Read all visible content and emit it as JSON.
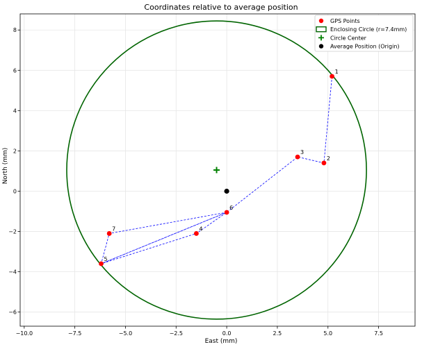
{
  "chart_data": {
    "type": "scatter",
    "title": "Coordinates relative to average position",
    "xlabel": "East (mm)",
    "ylabel": "North (mm)",
    "xlim": [
      -10.2,
      9.3
    ],
    "ylim": [
      -6.7,
      8.8
    ],
    "xticks": [
      -10.0,
      -7.5,
      -5.0,
      -2.5,
      0.0,
      2.5,
      5.0,
      7.5
    ],
    "xtick_labels": [
      "−10.0",
      "−7.5",
      "−5.0",
      "−2.5",
      "0.0",
      "2.5",
      "5.0",
      "7.5"
    ],
    "yticks": [
      -6,
      -4,
      -2,
      0,
      2,
      4,
      6,
      8
    ],
    "ytick_labels": [
      "−6",
      "−4",
      "−2",
      "0",
      "2",
      "4",
      "6",
      "8"
    ],
    "grid": true,
    "legend_position": "top-right",
    "points": [
      {
        "label": "1",
        "x": 5.2,
        "y": 5.7
      },
      {
        "label": "2",
        "x": 4.8,
        "y": 1.4
      },
      {
        "label": "3",
        "x": 3.5,
        "y": 1.7
      },
      {
        "label": "4",
        "x": -1.5,
        "y": -2.1
      },
      {
        "label": "5",
        "x": -6.2,
        "y": -3.6
      },
      {
        "label": "6",
        "x": 0.0,
        "y": -1.05
      },
      {
        "label": "7",
        "x": -5.8,
        "y": -2.1
      }
    ],
    "path_order": [
      "1",
      "2",
      "3",
      "6",
      "4",
      "5",
      "6",
      "5",
      "7",
      "6"
    ],
    "circle": {
      "cx": -0.5,
      "cy": 1.05,
      "r": 7.4
    },
    "circle_center": {
      "x": -0.5,
      "y": 1.05
    },
    "average_position": {
      "x": 0.0,
      "y": 0.0
    },
    "legend": [
      {
        "label": "GPS Points",
        "marker": "dot",
        "color": "#ff0000"
      },
      {
        "label": "Enclosing Circle (r=7.4mm)",
        "marker": "rect",
        "color": "#006400"
      },
      {
        "label": "Circle Center",
        "marker": "plus",
        "color": "#008000"
      },
      {
        "label": "Average Position (Origin)",
        "marker": "dot",
        "color": "#000000"
      }
    ],
    "colors": {
      "points": "#ff0000",
      "path": "#0000ff",
      "circle": "#006400",
      "center": "#008000",
      "average": "#000000",
      "grid": "#e6e6e6"
    }
  }
}
